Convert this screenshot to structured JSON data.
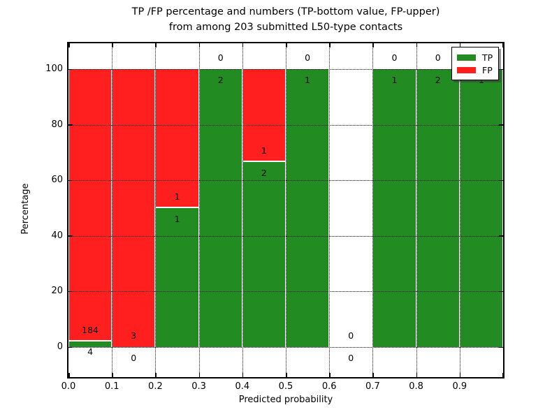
{
  "title": {
    "line1": "TP /FP percentage and numbers (TP-bottom value, FP-upper)",
    "line2": "from among 203 submitted L50-type contacts"
  },
  "chart_data": {
    "type": "bar",
    "stacked": true,
    "title": "TP /FP percentage and numbers (TP-bottom value, FP-upper) from among 203 submitted L50-type contacts",
    "xlabel": "Predicted probability",
    "ylabel": "Percentage",
    "total_submitted": 203,
    "xlim": [
      0.0,
      1.0
    ],
    "ylim": [
      -11,
      109
    ],
    "grid": true,
    "x_tick_labels": [
      "0.0",
      "0.1",
      "0.2",
      "0.3",
      "0.4",
      "0.5",
      "0.6",
      "0.7",
      "0.8",
      "0.9"
    ],
    "y_ticks": [
      0,
      20,
      40,
      60,
      80,
      100
    ],
    "bin_width": 0.1,
    "bins": [
      {
        "range": [
          0.0,
          0.1
        ],
        "tp": 4,
        "fp": 184,
        "tp_pct": 2.13,
        "fp_pct": 97.87
      },
      {
        "range": [
          0.1,
          0.2
        ],
        "tp": 0,
        "fp": 3,
        "tp_pct": 0,
        "fp_pct": 100
      },
      {
        "range": [
          0.2,
          0.3
        ],
        "tp": 1,
        "fp": 1,
        "tp_pct": 50,
        "fp_pct": 50
      },
      {
        "range": [
          0.3,
          0.4
        ],
        "tp": 2,
        "fp": 0,
        "tp_pct": 100,
        "fp_pct": 0
      },
      {
        "range": [
          0.4,
          0.5
        ],
        "tp": 2,
        "fp": 1,
        "tp_pct": 66.67,
        "fp_pct": 33.33
      },
      {
        "range": [
          0.5,
          0.6
        ],
        "tp": 1,
        "fp": 0,
        "tp_pct": 100,
        "fp_pct": 0
      },
      {
        "range": [
          0.6,
          0.7
        ],
        "tp": 0,
        "fp": 0,
        "tp_pct": 0,
        "fp_pct": 0
      },
      {
        "range": [
          0.7,
          0.8
        ],
        "tp": 1,
        "fp": 0,
        "tp_pct": 100,
        "fp_pct": 0
      },
      {
        "range": [
          0.8,
          0.9
        ],
        "tp": 2,
        "fp": 0,
        "tp_pct": 100,
        "fp_pct": 0
      },
      {
        "range": [
          0.9,
          1.0
        ],
        "tp": 1,
        "fp": 0,
        "tp_pct": 100,
        "fp_pct": 0
      }
    ],
    "legend": {
      "position": "upper right",
      "items": [
        {
          "label": "TP",
          "color": "#228b22"
        },
        {
          "label": "FP",
          "color": "#ff1f1f"
        }
      ]
    },
    "colors": {
      "tp": "#228b22",
      "fp": "#ff1f1f",
      "grid": "#000000",
      "text": "#000000"
    }
  }
}
